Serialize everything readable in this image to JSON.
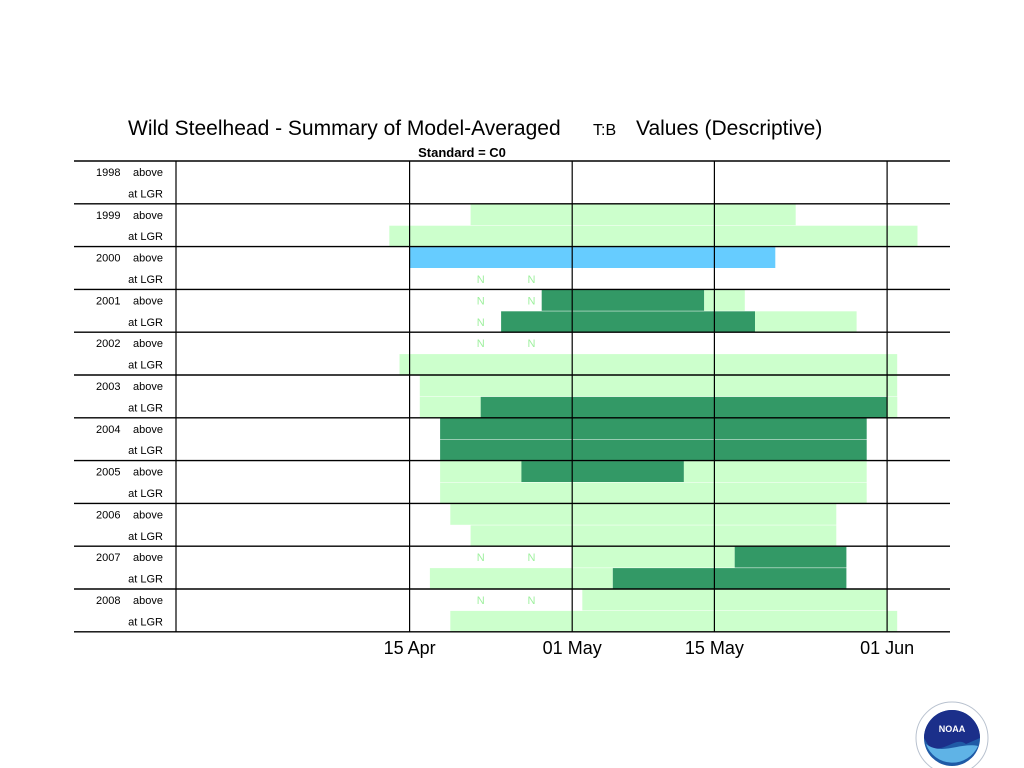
{
  "chart_data": {
    "type": "bar",
    "title": "Wild Steelhead - Summary of Model-Averaged",
    "title_symbol": "T:B",
    "title_suffix": "Values (Descriptive)",
    "subtitle": "Standard = C0",
    "x_axis": {
      "ticks": [
        {
          "label": "15 Apr",
          "day": 105
        },
        {
          "label": "01 May",
          "day": 121
        },
        {
          "label": "15 May",
          "day": 135
        },
        {
          "label": "01 Jun",
          "day": 152
        }
      ],
      "range": [
        82,
        158
      ]
    },
    "legend_colors": {
      "light": "#ccffcc",
      "dark": "#339966",
      "blue": "#66ccff"
    },
    "groups": [
      {
        "year": "1998",
        "rows": [
          {
            "label": "above",
            "segments": []
          },
          {
            "label": "at LGR",
            "segments": []
          }
        ]
      },
      {
        "year": "1999",
        "rows": [
          {
            "label": "above",
            "segments": [
              {
                "start": 111,
                "end": 143,
                "color": "light"
              }
            ]
          },
          {
            "label": "at LGR",
            "segments": [
              {
                "start": 103,
                "end": 155,
                "color": "light"
              }
            ]
          }
        ]
      },
      {
        "year": "2000",
        "rows": [
          {
            "label": "above",
            "segments": [
              {
                "start": 105,
                "end": 141,
                "color": "blue"
              }
            ]
          },
          {
            "label": "at LGR",
            "segments": []
          }
        ]
      },
      {
        "year": "2001",
        "rows": [
          {
            "label": "above",
            "segments": [
              {
                "start": 118,
                "end": 134,
                "color": "dark"
              },
              {
                "start": 134,
                "end": 138,
                "color": "light"
              }
            ]
          },
          {
            "label": "at LGR",
            "segments": [
              {
                "start": 114,
                "end": 139,
                "color": "dark"
              },
              {
                "start": 139,
                "end": 149,
                "color": "light"
              }
            ]
          }
        ]
      },
      {
        "year": "2002",
        "rows": [
          {
            "label": "above",
            "segments": []
          },
          {
            "label": "at LGR",
            "segments": [
              {
                "start": 104,
                "end": 153,
                "color": "light"
              }
            ]
          }
        ]
      },
      {
        "year": "2003",
        "rows": [
          {
            "label": "above",
            "segments": [
              {
                "start": 106,
                "end": 153,
                "color": "light"
              }
            ]
          },
          {
            "label": "at LGR",
            "segments": [
              {
                "start": 106,
                "end": 112,
                "color": "light"
              },
              {
                "start": 112,
                "end": 152,
                "color": "dark"
              },
              {
                "start": 152,
                "end": 153,
                "color": "light"
              }
            ]
          }
        ]
      },
      {
        "year": "2004",
        "rows": [
          {
            "label": "above",
            "segments": [
              {
                "start": 108,
                "end": 150,
                "color": "dark"
              }
            ]
          },
          {
            "label": "at LGR",
            "segments": [
              {
                "start": 108,
                "end": 150,
                "color": "dark"
              }
            ]
          }
        ]
      },
      {
        "year": "2005",
        "rows": [
          {
            "label": "above",
            "segments": [
              {
                "start": 108,
                "end": 116,
                "color": "light"
              },
              {
                "start": 116,
                "end": 132,
                "color": "dark"
              },
              {
                "start": 132,
                "end": 150,
                "color": "light"
              }
            ]
          },
          {
            "label": "at LGR",
            "segments": [
              {
                "start": 108,
                "end": 150,
                "color": "light"
              }
            ]
          }
        ]
      },
      {
        "year": "2006",
        "rows": [
          {
            "label": "above",
            "segments": [
              {
                "start": 109,
                "end": 147,
                "color": "light"
              }
            ]
          },
          {
            "label": "at LGR",
            "segments": [
              {
                "start": 111,
                "end": 147,
                "color": "light"
              }
            ]
          }
        ]
      },
      {
        "year": "2007",
        "rows": [
          {
            "label": "above",
            "segments": [
              {
                "start": 121,
                "end": 137,
                "color": "light"
              },
              {
                "start": 137,
                "end": 148,
                "color": "dark"
              }
            ]
          },
          {
            "label": "at LGR",
            "segments": [
              {
                "start": 107,
                "end": 125,
                "color": "light"
              },
              {
                "start": 125,
                "end": 148,
                "color": "dark"
              }
            ]
          }
        ]
      },
      {
        "year": "2008",
        "rows": [
          {
            "label": "above",
            "segments": [
              {
                "start": 122,
                "end": 152,
                "color": "light"
              }
            ]
          },
          {
            "label": "at LGR",
            "segments": [
              {
                "start": 109,
                "end": 153,
                "color": "light"
              }
            ]
          }
        ]
      }
    ],
    "n_markers": [
      {
        "group": 2,
        "row": 1,
        "day": 112,
        "text": "N"
      },
      {
        "group": 2,
        "row": 1,
        "day": 117,
        "text": "N"
      },
      {
        "group": 3,
        "row": 0,
        "day": 112,
        "text": "N"
      },
      {
        "group": 3,
        "row": 0,
        "day": 117,
        "text": "N"
      },
      {
        "group": 3,
        "row": 1,
        "day": 112,
        "text": "N"
      },
      {
        "group": 4,
        "row": 0,
        "day": 112,
        "text": "N"
      },
      {
        "group": 4,
        "row": 0,
        "day": 117,
        "text": "N"
      },
      {
        "group": 9,
        "row": 0,
        "day": 112,
        "text": "N"
      },
      {
        "group": 9,
        "row": 0,
        "day": 117,
        "text": "N"
      },
      {
        "group": 10,
        "row": 0,
        "day": 112,
        "text": "N"
      },
      {
        "group": 10,
        "row": 0,
        "day": 117,
        "text": "N"
      }
    ]
  },
  "logo": {
    "name": "NOAA",
    "text": "NOAA"
  }
}
